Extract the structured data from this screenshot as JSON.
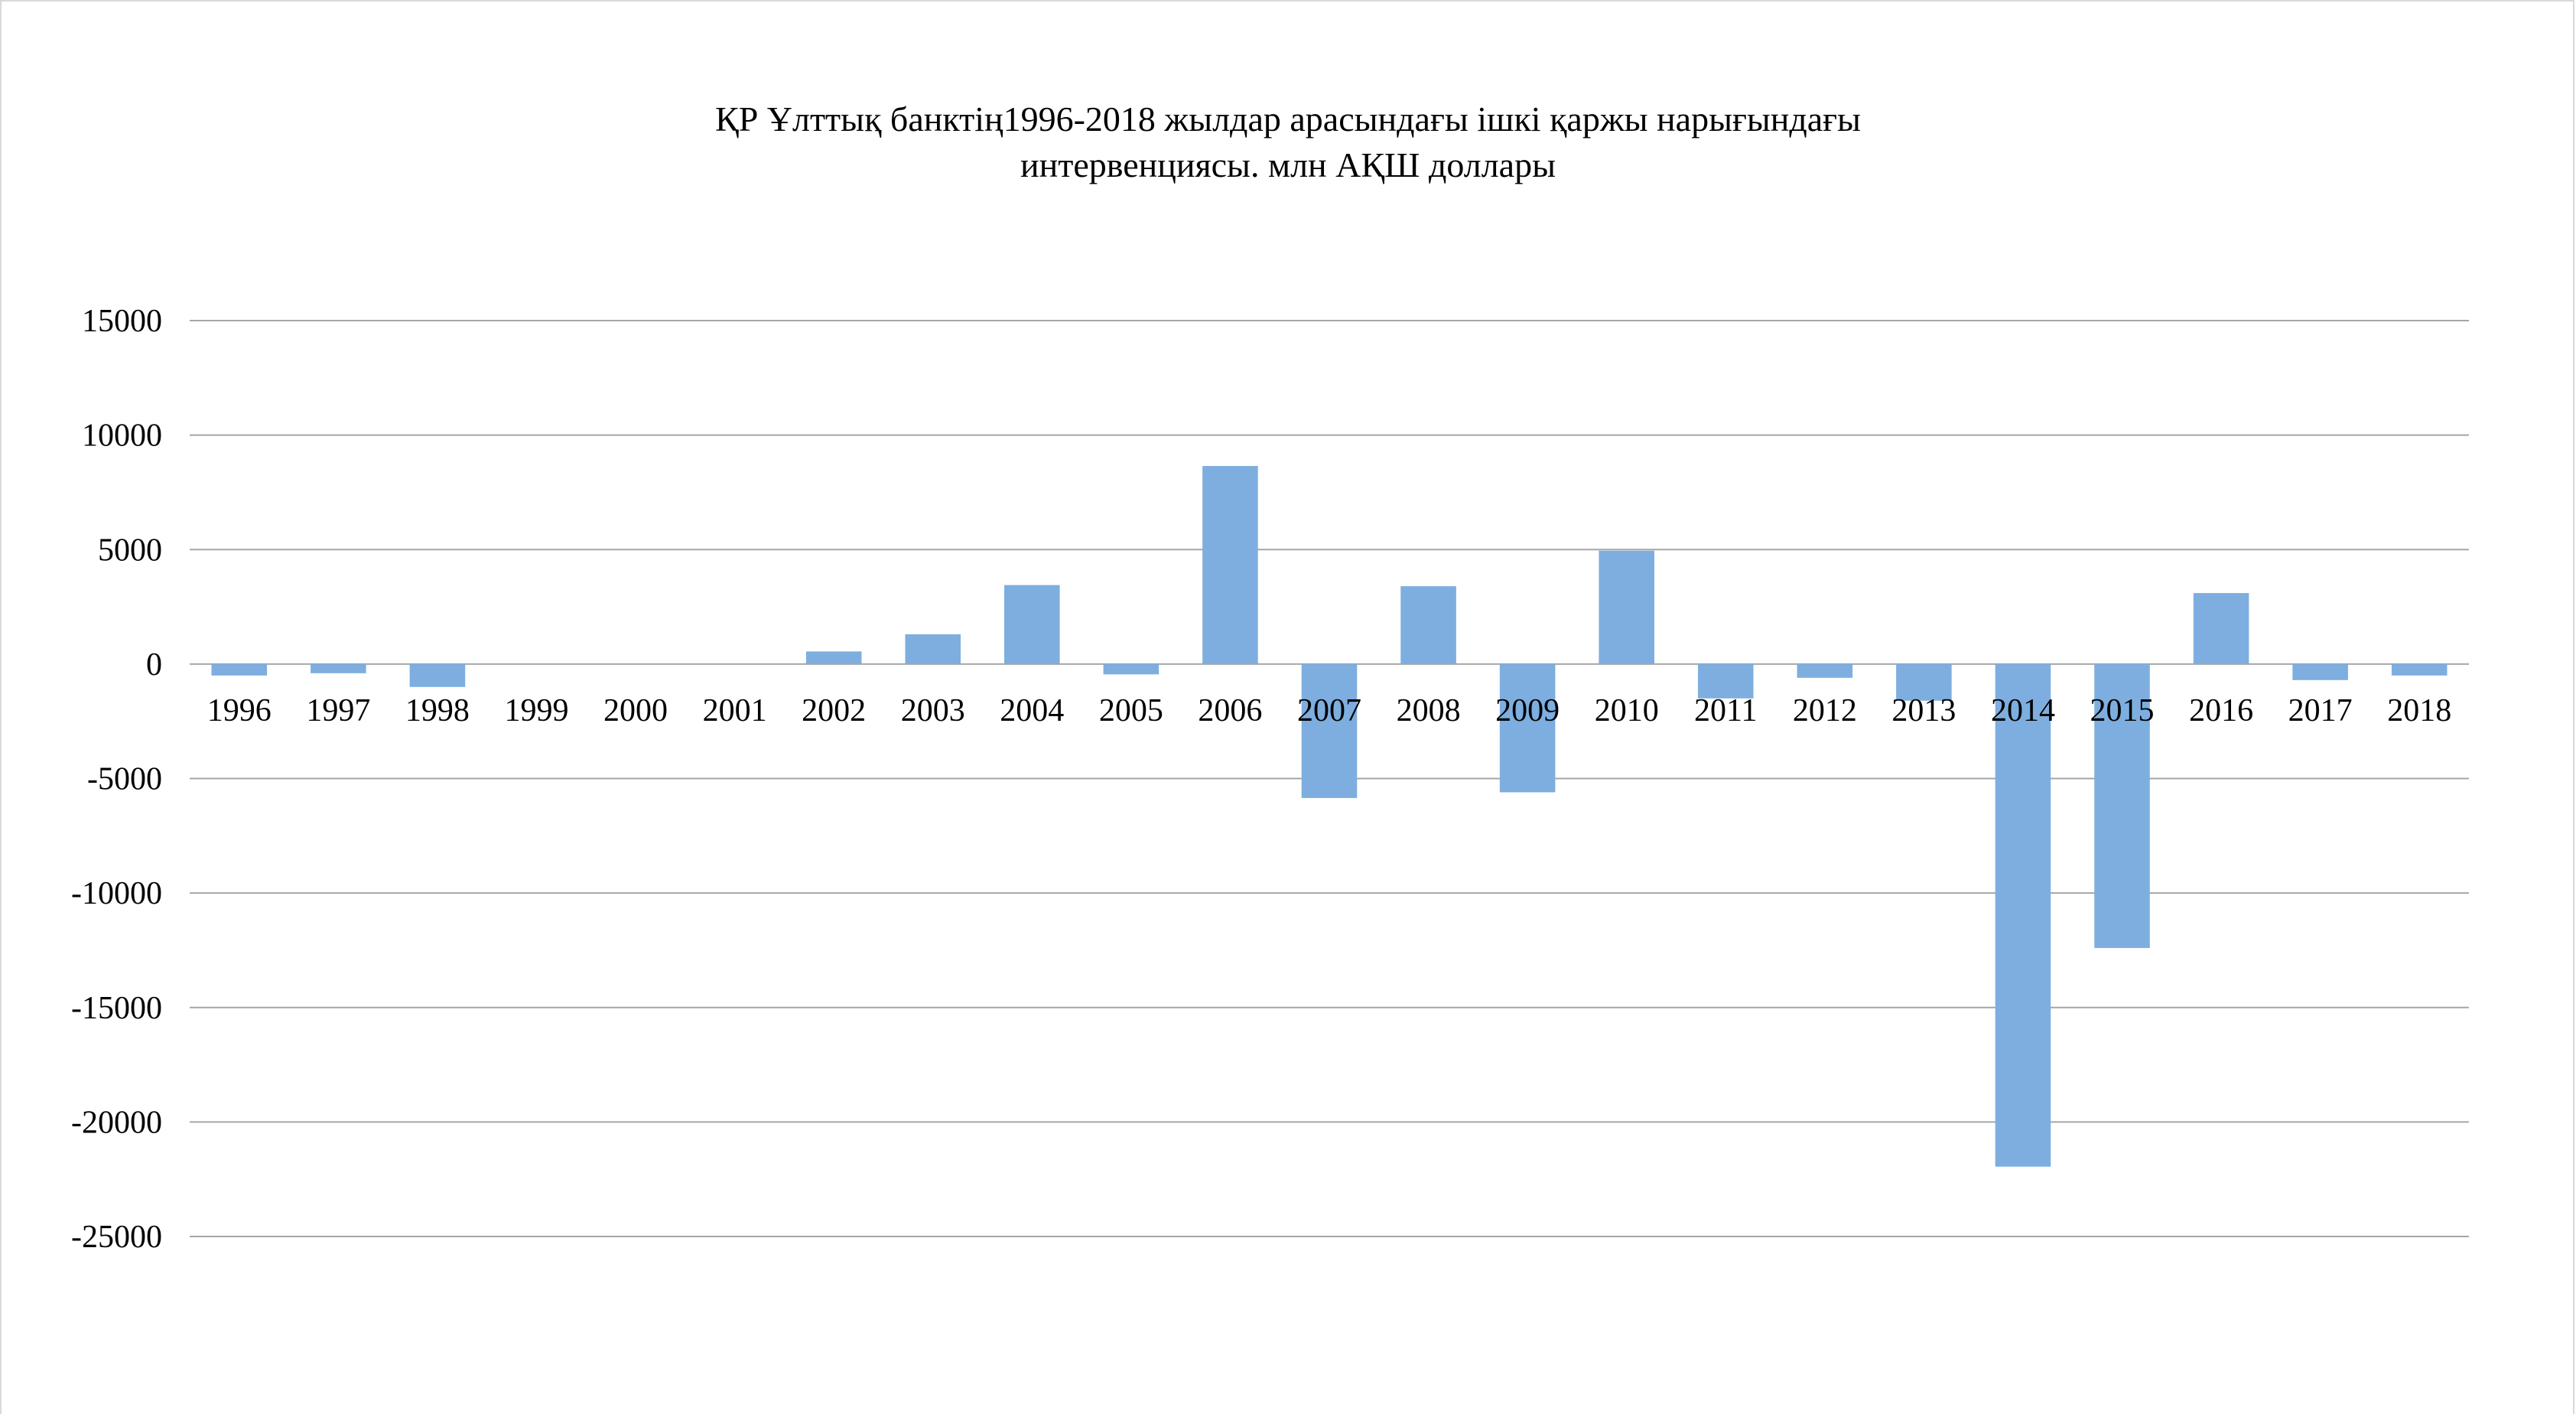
{
  "chart_data": {
    "type": "bar",
    "title": "ҚР Ұлттық банктің1996-2018 жылдар арасындағы   ішкі қаржы нарығындағы интервенциясы. млн АҚШ доллары",
    "title_lines": [
      "ҚР Ұлттық банктің1996-2018 жылдар арасындағы   ішкі қаржы нарығындағы",
      "интервенциясы. млн АҚШ доллары"
    ],
    "xlabel": "",
    "ylabel": "",
    "ylim": [
      -25000,
      15000
    ],
    "yticks": [
      15000,
      10000,
      5000,
      0,
      -5000,
      -10000,
      -15000,
      -20000,
      -25000
    ],
    "grid": true,
    "legend": "none",
    "bar_color": "#7daedf",
    "grid_color": "#a6a6a6",
    "categories": [
      "1996",
      "1997",
      "1998",
      "1999",
      "2000",
      "2001",
      "2002",
      "2003",
      "2004",
      "2005",
      "2006",
      "2007",
      "2008",
      "2009",
      "2010",
      "2011",
      "2012",
      "2013",
      "2014",
      "2015",
      "2016",
      "2017",
      "2018"
    ],
    "values": [
      -500,
      -400,
      -1000,
      0,
      0,
      0,
      550,
      1300,
      3450,
      -450,
      8650,
      -5850,
      3400,
      -5600,
      4950,
      -1500,
      -600,
      -1600,
      -21950,
      -12400,
      3100,
      -700,
      -500
    ]
  }
}
